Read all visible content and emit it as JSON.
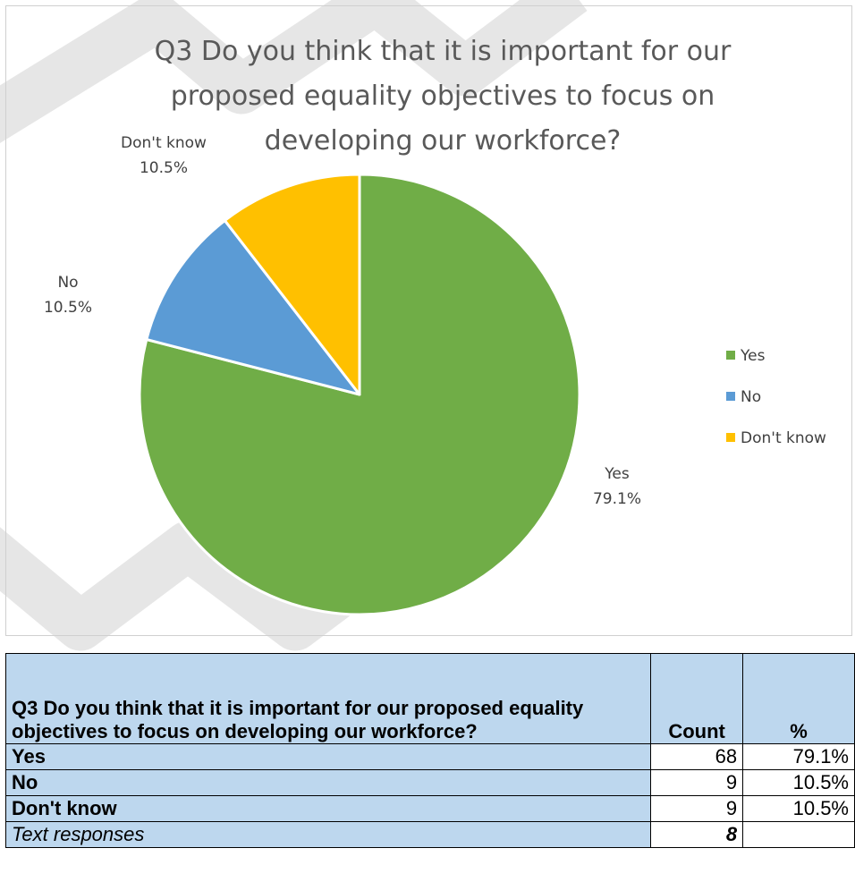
{
  "chart_data": {
    "type": "pie",
    "title": "Q3 Do you think that it is important for our proposed equality objectives to focus on developing our workforce?",
    "title_lines": [
      "Q3 Do you think that it is important for our",
      "proposed equality objectives to focus on",
      "developing our workforce?"
    ],
    "categories": [
      "Yes",
      "No",
      "Don't know"
    ],
    "values": [
      79.1,
      10.5,
      10.5
    ],
    "data_labels": [
      {
        "name": "Yes",
        "value": "79.1%"
      },
      {
        "name": "No",
        "value": "10.5%"
      },
      {
        "name": "Don't know",
        "value": "10.5%"
      }
    ],
    "colors": [
      "#70ad47",
      "#5b9bd5",
      "#ffc000"
    ],
    "legend": {
      "position": "right",
      "entries": [
        "Yes",
        "No",
        "Don't know"
      ]
    }
  },
  "table": {
    "header": {
      "question": "Q3 Do you think that it is important for our proposed equality objectives to focus on developing our workforce?",
      "count": "Count",
      "percent": "%"
    },
    "rows": [
      {
        "label": "Yes",
        "count": "68",
        "percent": "79.1%"
      },
      {
        "label": "No",
        "count": "9",
        "percent": "10.5%"
      },
      {
        "label": "Don't know",
        "count": "9",
        "percent": "10.5%"
      },
      {
        "label": "Text responses",
        "count": "8",
        "percent": ""
      }
    ]
  },
  "colors": {
    "header_fill": "#bdd7ee",
    "watermark": "#e6e6e6"
  }
}
